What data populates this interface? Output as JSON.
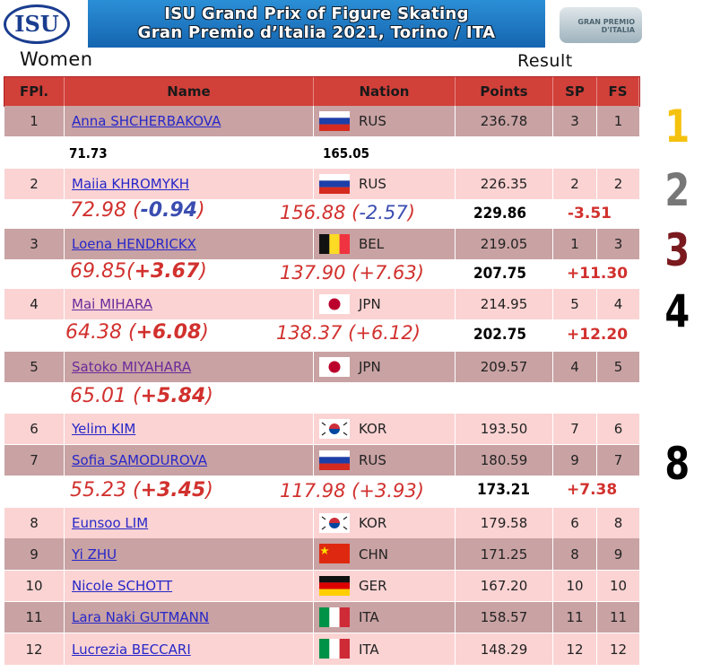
{
  "header": {
    "logo_left": "ISU",
    "title_line1": "ISU Grand Prix of Figure Skating",
    "title_line2": "Gran Premio d’Italia 2021, Torino / ITA",
    "logo_right": "GRAN PREMIO D'ITALIA"
  },
  "section": "Women",
  "result_label": "Result",
  "table": {
    "columns": [
      "FPl.",
      "Name",
      "Nation",
      "Points",
      "SP",
      "FS"
    ],
    "rows": [
      [
        "1",
        "Anna SHCHERBAKOVA",
        "RUS",
        "236.78",
        "3",
        "1"
      ],
      [
        "2",
        "Maiia KHROMYKH",
        "RUS",
        "226.35",
        "2",
        "2"
      ],
      [
        "3",
        "Loena HENDRICKX",
        "BEL",
        "219.05",
        "1",
        "3"
      ],
      [
        "4",
        "Mai MIHARA",
        "JPN",
        "214.95",
        "5",
        "4"
      ],
      [
        "5",
        "Satoko MIYAHARA",
        "JPN",
        "209.57",
        "4",
        "5"
      ],
      [
        "6",
        "Yelim KIM",
        "KOR",
        "193.50",
        "7",
        "6"
      ],
      [
        "7",
        "Sofia SAMODUROVA",
        "RUS",
        "180.59",
        "9",
        "7"
      ],
      [
        "8",
        "Eunsoo LIM",
        "KOR",
        "179.58",
        "6",
        "8"
      ],
      [
        "9",
        "Yi ZHU",
        "CHN",
        "171.25",
        "8",
        "9"
      ],
      [
        "10",
        "Nicole SCHOTT",
        "GER",
        "167.20",
        "10",
        "10"
      ],
      [
        "11",
        "Lara Naki GUTMANN",
        "ITA",
        "158.57",
        "11",
        "11"
      ],
      [
        "12",
        "Lucrezia BECCARI",
        "ITA",
        "148.29",
        "12",
        "12"
      ]
    ]
  },
  "annotations": [
    {
      "sp": "71.73",
      "fs": "165.05"
    },
    {
      "sp": "72.98 (",
      "sp_diff": "-0.94",
      "sp_close": ")",
      "fs": "156.88 (",
      "fs_diff": "-2.57",
      "fs_close": ")",
      "total": "229.86",
      "total_diff": "-3.51"
    },
    {
      "sp": "69.85(",
      "sp_diff": "+3.67",
      "sp_close": ")",
      "fs": "137.90 (+7.63)",
      "total": "207.75",
      "total_diff": "+11.30"
    },
    {
      "sp": "64.38 (",
      "sp_diff": "+6.08",
      "sp_close": ")",
      "fs": "138.37 (+6.12)",
      "total": "202.75",
      "total_diff": "+12.20"
    },
    {
      "sp": "65.01 (",
      "sp_diff": "+5.84",
      "sp_close": ")"
    },
    {
      "sp": "55.23 (",
      "sp_diff": "+3.45",
      "sp_close": ")",
      "fs": "117.98 (+3.93)",
      "total": "173.21",
      "total_diff": "+7.38"
    }
  ],
  "side_marks": [
    "1",
    "2",
    "3",
    "4",
    "8"
  ]
}
